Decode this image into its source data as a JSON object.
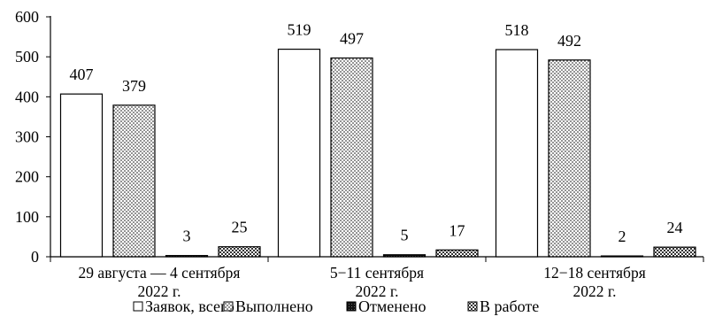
{
  "chart_data": {
    "type": "bar",
    "title": "",
    "xlabel": "",
    "ylabel": "",
    "ylim": [
      0,
      600
    ],
    "yticks": [
      0,
      100,
      200,
      300,
      400,
      500,
      600
    ],
    "grid": false,
    "legend_position": "bottom",
    "categories": [
      [
        "29 августа — 4 сентября",
        "2022 г."
      ],
      [
        "5−11 сентября",
        "2022 г."
      ],
      [
        "12−18 сентября",
        "2022 г."
      ]
    ],
    "series": [
      {
        "name": "Заявок, всего",
        "values": [
          407,
          519,
          518
        ],
        "pattern": "white"
      },
      {
        "name": "Выполнено",
        "values": [
          379,
          497,
          492
        ],
        "pattern": "dots"
      },
      {
        "name": "Отменено",
        "values": [
          3,
          5,
          2
        ],
        "pattern": "dark"
      },
      {
        "name": "В работе",
        "values": [
          25,
          17,
          24
        ],
        "pattern": "checker"
      }
    ]
  }
}
